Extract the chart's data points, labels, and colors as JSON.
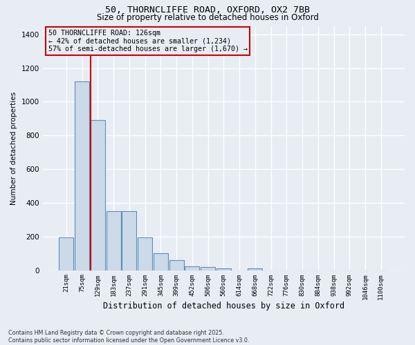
{
  "title_line1": "50, THORNCLIFFE ROAD, OXFORD, OX2 7BB",
  "title_line2": "Size of property relative to detached houses in Oxford",
  "xlabel": "Distribution of detached houses by size in Oxford",
  "ylabel": "Number of detached properties",
  "annotation_line1": "50 THORNCLIFFE ROAD: 126sqm",
  "annotation_line2": "← 42% of detached houses are smaller (1,234)",
  "annotation_line3": "57% of semi-detached houses are larger (1,670) →",
  "footer_line1": "Contains HM Land Registry data © Crown copyright and database right 2025.",
  "footer_line2": "Contains public sector information licensed under the Open Government Licence v3.0.",
  "bar_color": "#ccd9e8",
  "bar_edge_color": "#5b8db8",
  "vline_color": "#cc0000",
  "annotation_box_edgecolor": "#cc0000",
  "background_color": "#e8edf4",
  "grid_color": "#ffffff",
  "categories": [
    "21sqm",
    "75sqm",
    "129sqm",
    "183sqm",
    "237sqm",
    "291sqm",
    "345sqm",
    "399sqm",
    "452sqm",
    "506sqm",
    "560sqm",
    "614sqm",
    "668sqm",
    "722sqm",
    "776sqm",
    "830sqm",
    "884sqm",
    "938sqm",
    "992sqm",
    "1046sqm",
    "1100sqm"
  ],
  "values": [
    195,
    1120,
    893,
    350,
    350,
    195,
    100,
    62,
    25,
    20,
    12,
    0,
    12,
    0,
    0,
    0,
    0,
    0,
    0,
    0,
    0
  ],
  "vline_bar_index": 2,
  "ylim": [
    0,
    1450
  ],
  "yticks": [
    0,
    200,
    400,
    600,
    800,
    1000,
    1200,
    1400
  ]
}
